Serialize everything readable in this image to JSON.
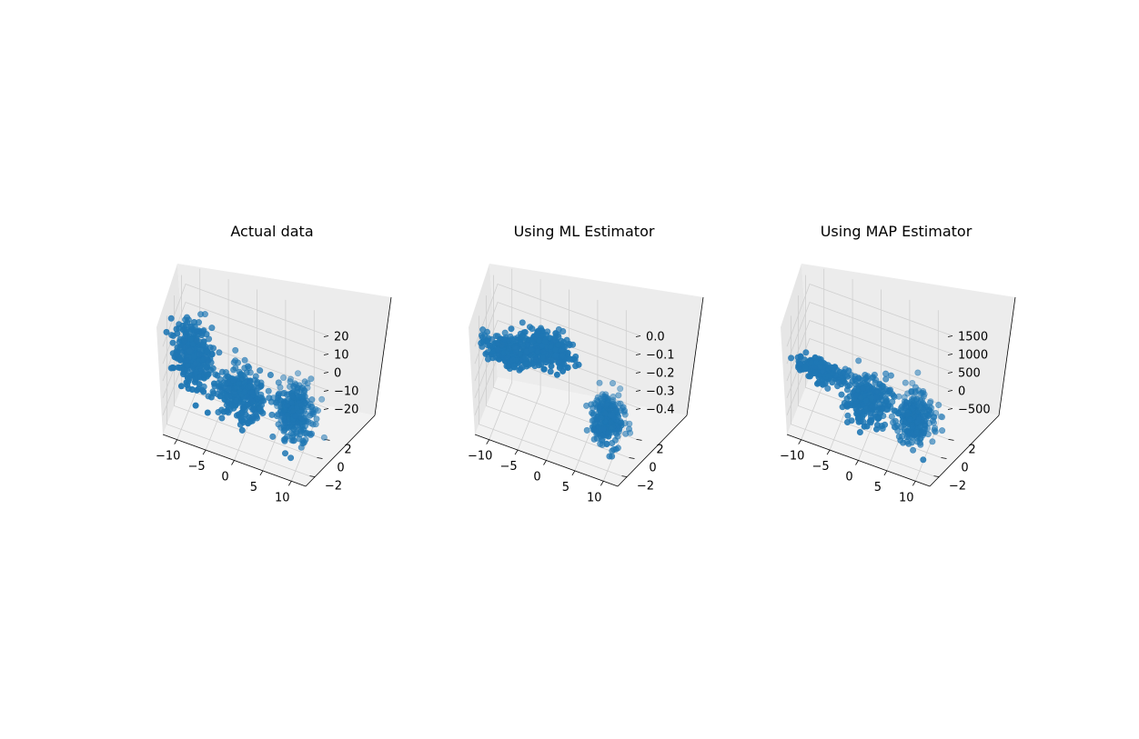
{
  "figure": {
    "point_color": "#1f77b4",
    "pane_colors": {
      "floor": "#f2f2f2",
      "left_wall": "#e6e6e6",
      "back_wall": "#ececec"
    },
    "grid_color": "#cfcfcf"
  },
  "chart_data": [
    {
      "type": "scatter",
      "projection": "3d",
      "title": "Actual data",
      "xlabel": "",
      "ylabel": "",
      "zlabel": "",
      "grid": true,
      "x_ticks": [
        "−10",
        "−5",
        "0",
        "5",
        "10"
      ],
      "y_ticks": [
        "−2",
        "0",
        "2"
      ],
      "z_ticks": [
        "20",
        "10",
        "0",
        "−10",
        "−20"
      ],
      "xlim": [
        -14,
        14
      ],
      "ylim": [
        -3.5,
        3.5
      ],
      "zlim": [
        -25,
        25
      ],
      "clusters": [
        {
          "center": [
            -9,
            2.4,
            12
          ],
          "spread": [
            1.8,
            0.9,
            5.5
          ],
          "count": 300
        },
        {
          "center": [
            0,
            1.2,
            -4
          ],
          "spread": [
            2.4,
            0.9,
            4.5
          ],
          "count": 300
        },
        {
          "center": [
            9,
            -1.2,
            -12
          ],
          "spread": [
            1.8,
            0.9,
            5.5
          ],
          "count": 300
        }
      ]
    },
    {
      "type": "scatter",
      "projection": "3d",
      "title": "Using ML Estimator",
      "xlabel": "",
      "ylabel": "",
      "zlabel": "",
      "grid": true,
      "x_ticks": [
        "−10",
        "−5",
        "0",
        "5",
        "10"
      ],
      "y_ticks": [
        "−2",
        "0",
        "2"
      ],
      "z_ticks": [
        "0.0",
        "−0.1",
        "−0.2",
        "−0.3",
        "−0.4"
      ],
      "xlim": [
        -14,
        14
      ],
      "ylim": [
        -3.5,
        3.5
      ],
      "zlim": [
        -0.42,
        0.02
      ],
      "clusters": [
        {
          "center": [
            -8.5,
            1.6,
            -0.11
          ],
          "spread": [
            2.5,
            0.5,
            0.02
          ],
          "count": 250
        },
        {
          "center": [
            -1,
            2.4,
            -0.005
          ],
          "spread": [
            2.4,
            0.6,
            0.025
          ],
          "count": 300
        },
        {
          "center": [
            9,
            -1.2,
            -0.34
          ],
          "spread": [
            1.6,
            0.9,
            0.035
          ],
          "count": 300
        }
      ]
    },
    {
      "type": "scatter",
      "projection": "3d",
      "title": "Using MAP Estimator",
      "xlabel": "",
      "ylabel": "",
      "zlabel": "",
      "grid": true,
      "x_ticks": [
        "−10",
        "−5",
        "0",
        "5",
        "10"
      ],
      "y_ticks": [
        "−2",
        "0",
        "2"
      ],
      "z_ticks": [
        "1500",
        "1000",
        "500",
        "0",
        "−500"
      ],
      "xlim": [
        -14,
        14
      ],
      "ylim": [
        -3.5,
        3.5
      ],
      "zlim": [
        -800,
        1600
      ],
      "clusters": [
        {
          "center": [
            -8,
            2.5,
            700
          ],
          "spread": [
            2.4,
            0.4,
            80
          ],
          "count": 180
        },
        {
          "center": [
            0,
            1,
            120
          ],
          "spread": [
            2.2,
            0.9,
            170
          ],
          "count": 300
        },
        {
          "center": [
            8,
            -1.3,
            -400
          ],
          "spread": [
            1.7,
            0.9,
            230
          ],
          "count": 300
        }
      ]
    }
  ]
}
